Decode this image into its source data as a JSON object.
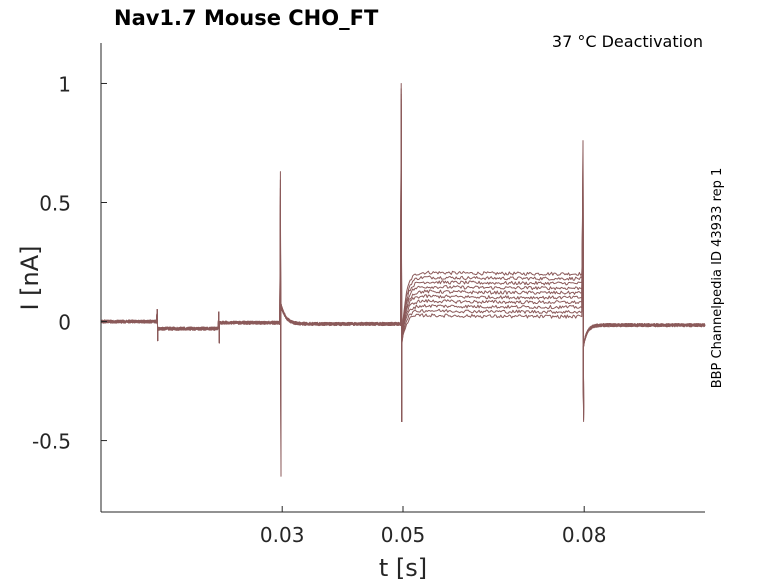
{
  "chart_data": {
    "type": "line",
    "title": "Nav1.7  Mouse  CHO_FT",
    "annotation": "37 °C  Deactivation",
    "side_label": "BBP Channelpedia ID 43933 rep 1",
    "xlabel": "t [s]",
    "ylabel": "I [nA]",
    "xlim": [
      0.0,
      0.1
    ],
    "ylim": [
      -0.8,
      1.17
    ],
    "x_ticks": [
      0.03,
      0.05,
      0.08
    ],
    "x_tick_labels": [
      "0.03",
      "0.05",
      "0.08"
    ],
    "y_ticks": [
      -0.5,
      0,
      0.5,
      1
    ],
    "y_tick_labels": [
      "-0.5",
      "0",
      "0.5",
      "1"
    ],
    "grid": false,
    "line_color": "#8b5a5a",
    "pulse_times": [
      0.0093,
      0.0195,
      0.0297,
      0.0497,
      0.0798
    ],
    "spike_peaks": {
      "t30_up": 0.63,
      "t30_down": -0.65,
      "t50_up": 1.0,
      "t50_down": -0.42,
      "t80_up": 0.76,
      "t80_down": -0.42
    },
    "step_levels": [
      0.2,
      0.18,
      0.16,
      0.14,
      0.12,
      0.1,
      0.08,
      0.06,
      0.04,
      0.02
    ],
    "series_count": 10
  }
}
